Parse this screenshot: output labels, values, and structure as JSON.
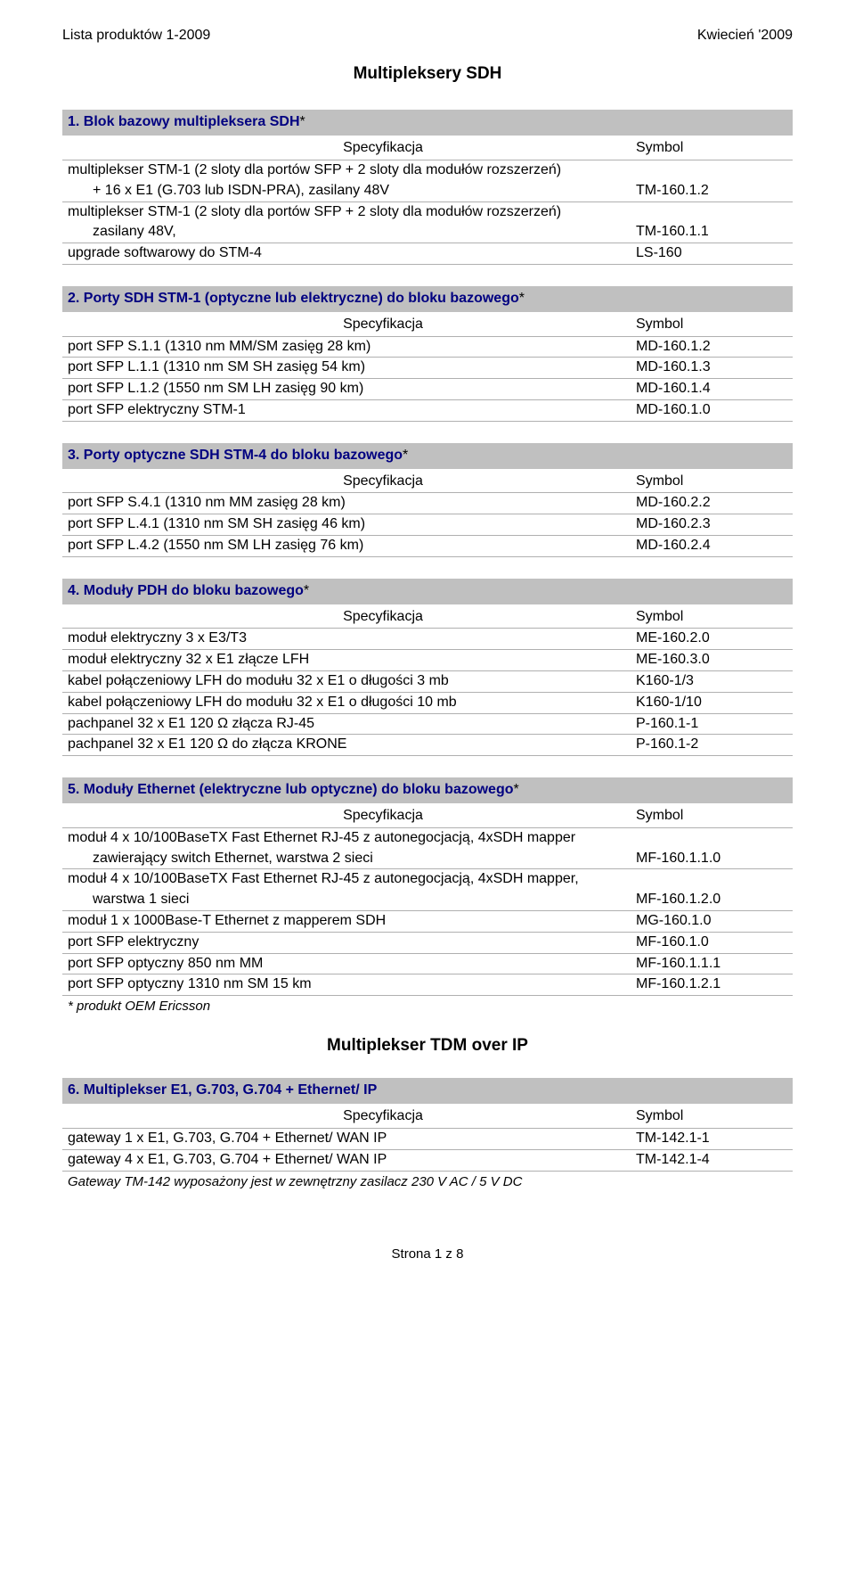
{
  "header": {
    "left": "Lista produktów 1-2009",
    "right": "Kwiecień '2009"
  },
  "main_title": "Multipleksery SDH",
  "labels": {
    "spec": "Specyfikacja",
    "symbol": "Symbol"
  },
  "s1": {
    "title": "1. Blok bazowy multipleksera SDH",
    "rows": [
      {
        "l1": "multiplekser STM-1 (2 sloty dla portów SFP + 2 sloty dla modułów rozszerzeń)",
        "l2": "+ 16 x E1 (G.703 lub ISDN-PRA), zasilany 48V",
        "v": "TM-160.1.2"
      },
      {
        "l1": "multiplekser STM-1 (2 sloty dla portów SFP + 2 sloty dla modułów rozszerzeń)",
        "l2": "zasilany 48V,",
        "v": "TM-160.1.1"
      },
      {
        "l1": "upgrade softwarowy do STM-4",
        "v": "LS-160"
      }
    ]
  },
  "s2": {
    "title": "2. Porty SDH STM-1 (optyczne lub elektryczne) do bloku bazowego",
    "rows": [
      {
        "l1": "port SFP S.1.1 (1310 nm MM/SM zasięg 28 km)",
        "v": "MD-160.1.2"
      },
      {
        "l1": "port SFP L.1.1 (1310 nm SM SH zasięg 54 km)",
        "v": "MD-160.1.3"
      },
      {
        "l1": "port SFP L.1.2 (1550 nm SM LH zasięg 90 km)",
        "v": "MD-160.1.4"
      },
      {
        "l1": "port SFP elektryczny  STM-1",
        "v": "MD-160.1.0"
      }
    ]
  },
  "s3": {
    "title": "3. Porty optyczne SDH STM-4 do bloku bazowego",
    "rows": [
      {
        "l1": "port SFP S.4.1 (1310 nm MM zasięg 28 km)",
        "v": "MD-160.2.2"
      },
      {
        "l1": "port SFP L.4.1 (1310 nm SM SH zasięg 46 km)",
        "v": "MD-160.2.3"
      },
      {
        "l1": "port SFP L.4.2 (1550 nm SM LH zasięg 76 km)",
        "v": "MD-160.2.4"
      }
    ]
  },
  "s4": {
    "title": "4. Moduły PDH do bloku bazowego",
    "rows": [
      {
        "l1": "moduł elektryczny 3 x E3/T3",
        "v": "ME-160.2.0"
      },
      {
        "l1": "moduł elektryczny 32 x E1 złącze LFH",
        "v": "ME-160.3.0"
      },
      {
        "l1": "kabel połączeniowy LFH do modułu 32 x E1 o długości 3 mb",
        "v": "K160-1/3"
      },
      {
        "l1": "kabel połączeniowy LFH do modułu 32 x E1 o długości 10 mb",
        "v": "K160-1/10"
      },
      {
        "l1": "pachpanel 32 x E1 120 Ω złącza RJ-45",
        "v": "P-160.1-1"
      },
      {
        "l1": "pachpanel 32 x E1 120 Ω do złącza KRONE",
        "v": "P-160.1-2"
      }
    ]
  },
  "s5": {
    "title": "5. Moduły Ethernet (elektryczne lub optyczne) do bloku bazowego",
    "rows": [
      {
        "l1": "moduł 4 x 10/100BaseTX Fast Ethernet RJ-45 z autonegocjacją, 4xSDH mapper",
        "l2": "zawierający switch Ethernet, warstwa 2 sieci",
        "v": "MF-160.1.1.0"
      },
      {
        "l1": "moduł 4 x 10/100BaseTX Fast Ethernet RJ-45 z autonegocjacją, 4xSDH mapper,",
        "l2": "warstwa 1 sieci",
        "v": "MF-160.1.2.0"
      },
      {
        "l1": "moduł 1 x 1000Base-T Ethernet z mapperem SDH",
        "v": "MG-160.1.0"
      },
      {
        "l1": "port SFP elektryczny",
        "v": "MF-160.1.0"
      },
      {
        "l1": "port SFP optyczny 850 nm MM",
        "v": "MF-160.1.1.1"
      },
      {
        "l1": "port SFP optyczny 1310 nm SM 15 km",
        "v": "MF-160.1.2.1"
      }
    ],
    "footnote": "* produkt OEM Ericsson"
  },
  "sub_title": "Multiplekser TDM over IP",
  "s6": {
    "title": "6. Multiplekser E1, G.703, G.704 + Ethernet/ IP",
    "rows": [
      {
        "l1": "gateway 1 x E1, G.703, G.704 + Ethernet/ WAN IP",
        "v": "TM-142.1-1"
      },
      {
        "l1": "gateway 4 x E1, G.703, G.704 + Ethernet/ WAN IP",
        "v": "TM-142.1-4"
      }
    ],
    "footnote": "Gateway TM-142 wyposażony jest w zewnętrzny zasilacz 230 V AC / 5 V DC"
  },
  "star": "*",
  "footer": "Strona 1 z 8"
}
